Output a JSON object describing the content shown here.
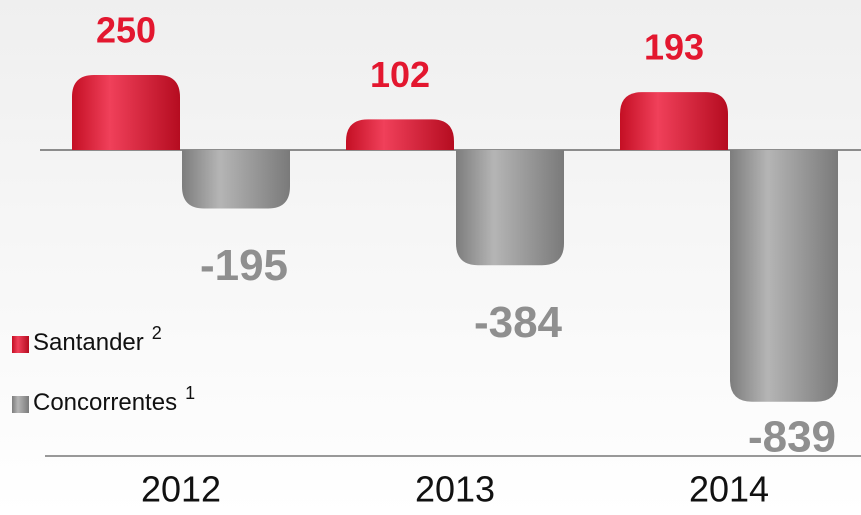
{
  "chart_data": {
    "type": "bar",
    "categories": [
      "2012",
      "2013",
      "2014"
    ],
    "series": [
      {
        "name": "Santander",
        "footnote": "2",
        "color": "#e3172f",
        "values": [
          250,
          102,
          193
        ]
      },
      {
        "name": "Concorrentes",
        "footnote": "1",
        "color": "#8f8f8f",
        "values": [
          -195,
          -384,
          -839
        ]
      }
    ]
  }
}
